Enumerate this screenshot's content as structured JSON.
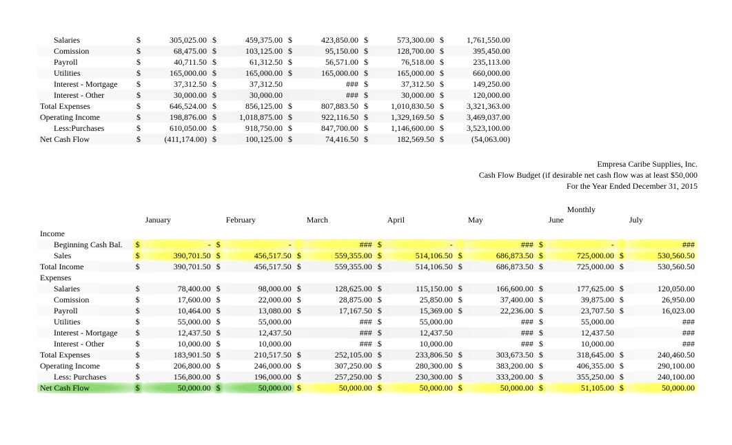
{
  "table1": {
    "rows": [
      {
        "label": "Salaries",
        "indent": true,
        "vals": [
          "305,025.00",
          "459,375.00",
          "423,850.00",
          "573,300.00",
          "1,761,550.00"
        ],
        "curs": [
          "$",
          "$",
          "$",
          "$",
          "$"
        ]
      },
      {
        "label": "Comission",
        "indent": true,
        "vals": [
          "68,475.00",
          "103,125.00",
          "95,150.00",
          "128,700.00",
          "395,450.00"
        ],
        "curs": [
          "$",
          "$",
          "$",
          "$",
          "$"
        ]
      },
      {
        "label": "Payroll",
        "indent": true,
        "vals": [
          "40,711.50",
          "61,312.50",
          "56,571.00",
          "76,518.00",
          "235,113.00"
        ],
        "curs": [
          "$",
          "$",
          "$",
          "$",
          "$"
        ]
      },
      {
        "label": "Utilities",
        "indent": true,
        "vals": [
          "165,000.00",
          "165,000.00",
          "165,000.00",
          "165,000.00",
          "660,000.00"
        ],
        "curs": [
          "$",
          "$",
          "$",
          "$",
          "$"
        ]
      },
      {
        "label": "Interest - Mortgage",
        "indent": true,
        "vals": [
          "37,312.50",
          "37,312.50",
          "###",
          "37,312.50",
          "149,250.00"
        ],
        "curs": [
          "$",
          "$",
          "",
          "$",
          "$"
        ]
      },
      {
        "label": "Interest - Other",
        "indent": true,
        "vals": [
          "30,000.00",
          "30,000.00",
          "###",
          "30,000.00",
          "120,000.00"
        ],
        "curs": [
          "$",
          "$",
          "",
          "$",
          "$"
        ]
      },
      {
        "label": "Total Expenses",
        "indent": false,
        "vals": [
          "646,524.00",
          "856,125.00",
          "807,883.50",
          "1,010,830.50",
          "3,321,363.00"
        ],
        "curs": [
          "$",
          "$",
          "$",
          "$",
          "$"
        ]
      },
      {
        "label": "Operating Income",
        "indent": false,
        "vals": [
          "198,876.00",
          "1,018,875.00",
          "922,116.50",
          "1,329,169.50",
          "3,469,037.00"
        ],
        "curs": [
          "$",
          "$",
          "$",
          "$",
          "$"
        ]
      },
      {
        "label": "Less:Purchases",
        "indent": true,
        "vals": [
          "610,050.00",
          "918,750.00",
          "847,700.00",
          "1,146,600.00",
          "3,523,100.00"
        ],
        "curs": [
          "$",
          "$",
          "$",
          "$",
          "$"
        ]
      },
      {
        "label": "Net Cash Flow",
        "indent": false,
        "vals": [
          "(411,174.00)",
          "100,125.00",
          "74,416.50",
          "182,569.50",
          "(54,063.00)"
        ],
        "curs": [
          "$",
          "$",
          "$",
          "$",
          "$"
        ]
      }
    ]
  },
  "header": {
    "company": "Empresa Caribe Supplies, Inc.",
    "subtitle": "Cash Flow Budget (if desirable net cash flow was at least $50,000",
    "period": "For the Year Ended December 31, 2015"
  },
  "monthly_label": "Monthly",
  "months": [
    "January",
    "February",
    "March",
    "April",
    "May",
    "June",
    "July"
  ],
  "table2": {
    "sections": [
      {
        "type": "head",
        "label": "Income"
      },
      {
        "type": "row",
        "label": "Beginning Cash Bal.",
        "indent": true,
        "hl": "yellow",
        "vals": [
          "-",
          "-",
          "###",
          "-",
          "###",
          "-",
          "###"
        ],
        "curs": [
          "$",
          "$",
          "",
          "$",
          "",
          "$",
          ""
        ]
      },
      {
        "type": "row",
        "label": "Sales",
        "indent": true,
        "hl": "yellow",
        "vals": [
          "390,701.50",
          "456,517.50",
          "559,355.00",
          "514,106.50",
          "686,873.50",
          "725,000.00",
          "530,560.50"
        ],
        "curs": [
          "$",
          "$",
          "$",
          "$",
          "$",
          "$",
          "$"
        ]
      },
      {
        "type": "row",
        "label": "Total Income",
        "indent": false,
        "hl": "",
        "vals": [
          "390,701.50",
          "456,517.50",
          "559,355.00",
          "514,106.50",
          "686,873.50",
          "725,000.00",
          "530,560.50"
        ],
        "curs": [
          "$",
          "$",
          "$",
          "$",
          "$",
          "$",
          "$"
        ]
      },
      {
        "type": "head",
        "label": "Expenses"
      },
      {
        "type": "row",
        "label": "Salaries",
        "indent": true,
        "hl": "",
        "vals": [
          "78,400.00",
          "98,000.00",
          "128,625.00",
          "115,150.00",
          "166,600.00",
          "177,625.00",
          "120,050.00"
        ],
        "curs": [
          "$",
          "$",
          "$",
          "$",
          "$",
          "$",
          "$"
        ]
      },
      {
        "type": "row",
        "label": "Comission",
        "indent": true,
        "hl": "",
        "vals": [
          "17,600.00",
          "22,000.00",
          "28,875.00",
          "25,850.00",
          "37,400.00",
          "39,875.00",
          "26,950.00"
        ],
        "curs": [
          "$",
          "$",
          "$",
          "$",
          "$",
          "$",
          "$"
        ]
      },
      {
        "type": "row",
        "label": "Payroll",
        "indent": true,
        "hl": "",
        "vals": [
          "10,464.00",
          "13,080.00",
          "17,167.50",
          "15,369.00",
          "22,236.00",
          "23,707.50",
          "16,023.00"
        ],
        "curs": [
          "$",
          "$",
          "$",
          "$",
          "$",
          "$",
          "$"
        ]
      },
      {
        "type": "row",
        "label": "Utilities",
        "indent": true,
        "hl": "",
        "vals": [
          "55,000.00",
          "55,000.00",
          "###",
          "55,000.00",
          "###",
          "55,000.00",
          "###"
        ],
        "curs": [
          "$",
          "$",
          "",
          "$",
          "",
          "$",
          ""
        ]
      },
      {
        "type": "row",
        "label": "Interest - Mortgage",
        "indent": true,
        "hl": "",
        "vals": [
          "12,437.50",
          "12,437.50",
          "###",
          "12,437.50",
          "###",
          "12,437.50",
          "###"
        ],
        "curs": [
          "$",
          "$",
          "",
          "$",
          "",
          "$",
          ""
        ]
      },
      {
        "type": "row",
        "label": "Interest - Other",
        "indent": true,
        "hl": "",
        "vals": [
          "10,000.00",
          "10,000.00",
          "###",
          "10,000.00",
          "###",
          "10,000.00",
          "###"
        ],
        "curs": [
          "$",
          "$",
          "",
          "$",
          "",
          "$",
          ""
        ]
      },
      {
        "type": "row",
        "label": "Total Expenses",
        "indent": false,
        "hl": "",
        "vals": [
          "183,901.50",
          "210,517.50",
          "252,105.00",
          "233,806.50",
          "303,673.50",
          "318,645.00",
          "240,460.50"
        ],
        "curs": [
          "$",
          "$",
          "$",
          "$",
          "$",
          "$",
          "$"
        ]
      },
      {
        "type": "row",
        "label": "Operating Income",
        "indent": false,
        "hl": "",
        "vals": [
          "206,800.00",
          "246,000.00",
          "307,250.00",
          "280,300.00",
          "383,200.00",
          "406,355.00",
          "290,100.00"
        ],
        "curs": [
          "$",
          "$",
          "$",
          "$",
          "$",
          "$",
          "$"
        ]
      },
      {
        "type": "row",
        "label": "Less: Purchases",
        "indent": true,
        "hl": "",
        "vals": [
          "156,800.00",
          "196,000.00",
          "257,250.00",
          "230,300.00",
          "333,200.00",
          "355,250.00",
          "240,100.00"
        ],
        "curs": [
          "$",
          "$",
          "$",
          "$",
          "$",
          "$",
          "$"
        ]
      },
      {
        "type": "row",
        "label": "Net Cash Flow",
        "indent": false,
        "hl": "netcashflow",
        "vals": [
          "50,000.00",
          "50,000.00",
          "50,000.00",
          "50,000.00",
          "50,000.00",
          "51,105.00",
          "50,000.00"
        ],
        "curs": [
          "$",
          "$",
          "$",
          "$",
          "$",
          "$",
          "$"
        ]
      }
    ]
  }
}
